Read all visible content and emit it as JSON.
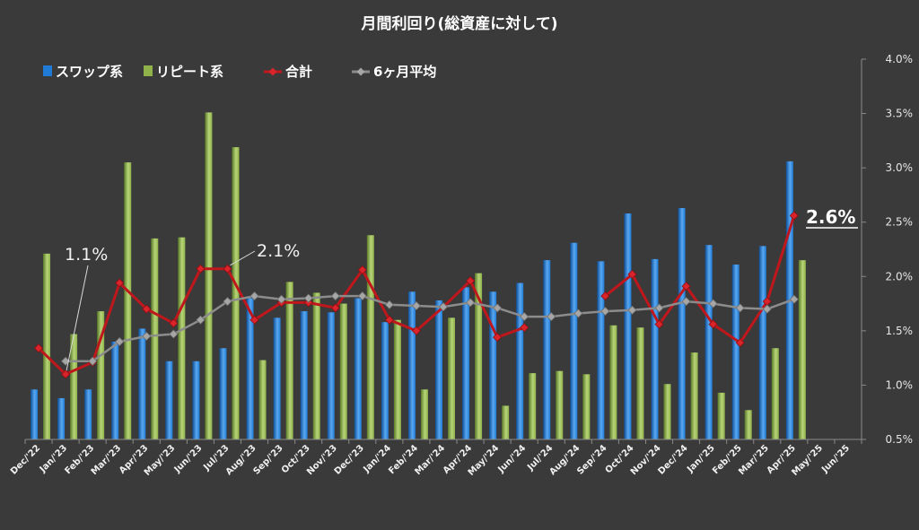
{
  "chart_data": {
    "type": "bar",
    "title": "月間利回り(総資産に対して)",
    "categories": [
      "Dec/'22",
      "Jan/'23",
      "Feb/'23",
      "Mar/'23",
      "Apr/'23",
      "May/'23",
      "Jun/'23",
      "Jul/'23",
      "Aug/'23",
      "Sep/'23",
      "Oct/'23",
      "Nov/'23",
      "Dec/'23",
      "Jan/'24",
      "Feb/'24",
      "Mar/'24",
      "Apr/'24",
      "May/'24",
      "Jun/'24",
      "Jul/'24",
      "Aug/'24",
      "Sep/'24",
      "Oct/'24",
      "Nov/'24",
      "Dec/'24",
      "Jan/'25",
      "Feb/'25",
      "Mar/'25",
      "Apr/'25",
      "May/'25",
      "Jun/'25"
    ],
    "ylim": [
      0.5,
      4.0
    ],
    "yticks": [
      "0.5%",
      "1.0%",
      "1.5%",
      "2.0%",
      "2.5%",
      "3.0%",
      "3.5%",
      "4.0%"
    ],
    "y_axis_position": "right",
    "grid": false,
    "legend_position": "top-left",
    "series": [
      {
        "name": "スワップ系",
        "type": "bar",
        "color": "#1f7bd6",
        "values": [
          0.96,
          0.88,
          0.96,
          1.4,
          1.52,
          1.22,
          1.22,
          1.34,
          1.8,
          1.62,
          1.68,
          1.67,
          1.8,
          1.58,
          1.86,
          1.78,
          1.9,
          1.86,
          1.94,
          2.15,
          2.31,
          2.14,
          2.58,
          2.16,
          2.63,
          2.29,
          2.11,
          2.28,
          3.06,
          null,
          null
        ]
      },
      {
        "name": "リピート系",
        "type": "bar",
        "color": "#8fb24a",
        "values": [
          2.21,
          1.47,
          1.68,
          3.05,
          2.35,
          2.36,
          3.51,
          3.19,
          1.23,
          1.95,
          1.85,
          1.75,
          2.38,
          1.6,
          0.96,
          1.62,
          2.03,
          0.81,
          1.11,
          1.13,
          1.1,
          1.55,
          1.53,
          1.01,
          1.3,
          0.93,
          0.77,
          1.34,
          2.15,
          null,
          null
        ]
      },
      {
        "name": "合計",
        "type": "line",
        "color": "#c0171c",
        "values": [
          1.34,
          1.1,
          1.21,
          1.94,
          1.7,
          1.57,
          2.07,
          2.07,
          1.6,
          1.76,
          1.76,
          1.71,
          2.06,
          1.6,
          1.5,
          1.72,
          1.96,
          1.44,
          1.53,
          null,
          null,
          1.82,
          2.02,
          1.56,
          1.91,
          1.56,
          1.39,
          1.77,
          2.56,
          null,
          null
        ]
      },
      {
        "name": "6ヶ月平均",
        "type": "line",
        "color": "#8c8c8c",
        "values": [
          null,
          1.22,
          1.22,
          1.4,
          1.45,
          1.47,
          1.6,
          1.77,
          1.82,
          1.79,
          1.8,
          1.82,
          1.82,
          1.74,
          1.73,
          1.72,
          1.76,
          1.71,
          1.63,
          1.63,
          1.66,
          1.68,
          1.69,
          1.71,
          1.77,
          1.75,
          1.71,
          1.7,
          1.79,
          null,
          null
        ]
      }
    ],
    "annotations": [
      {
        "text": "1.1%",
        "category": "Jan/'23",
        "value": 1.1
      },
      {
        "text": "2.1%",
        "category": "Jul/'23",
        "value": 2.07
      },
      {
        "text": "2.6%",
        "category": "Apr/'25",
        "value": 2.56,
        "emphasis": true
      }
    ]
  }
}
